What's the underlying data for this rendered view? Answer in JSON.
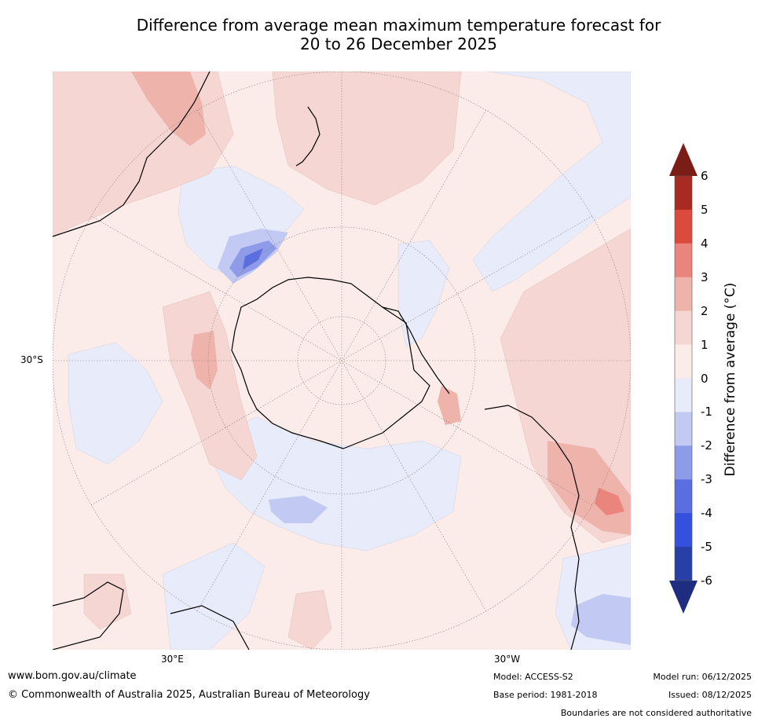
{
  "title_line1": "Difference from average mean maximum temperature forecast for",
  "title_line2": "20 to 26 December 2025",
  "labels": {
    "lat_30s": "30°S",
    "lon_30e": "30°E",
    "lon_30w": "30°W"
  },
  "colorbar": {
    "title": "Difference from average (°C)",
    "ticks": [
      "6",
      "5",
      "4",
      "3",
      "2",
      "1",
      "0",
      "-1",
      "-2",
      "-3",
      "-4",
      "-5",
      "-6"
    ],
    "levels_high_to_low": [
      6,
      5,
      4,
      3,
      2,
      1,
      0,
      -1,
      -2,
      -3,
      -4,
      -5,
      -6
    ],
    "colors_high_to_low": [
      "#a82a22",
      "#dc4a3e",
      "#e9857c",
      "#eeb3ab",
      "#f5d6d3",
      "#fbece9",
      "#e8ebfa",
      "#c2c9f2",
      "#8e9be9",
      "#5a6ee0",
      "#3550de",
      "#283fa8"
    ],
    "extend_high_color": "#7a1d17",
    "extend_low_color": "#1f2d80"
  },
  "footer": {
    "website": "www.bom.gov.au/climate",
    "copyright": "© Commonwealth of Australia 2025, Australian Bureau of Meteorology",
    "model": "Model: ACCESS-S2",
    "base_period": "Base period: 1981-2018",
    "model_run": "Model run: 06/12/2025",
    "issued": "Issued: 08/12/2025",
    "disclaimer": "Boundaries are not considered authoritative"
  }
}
